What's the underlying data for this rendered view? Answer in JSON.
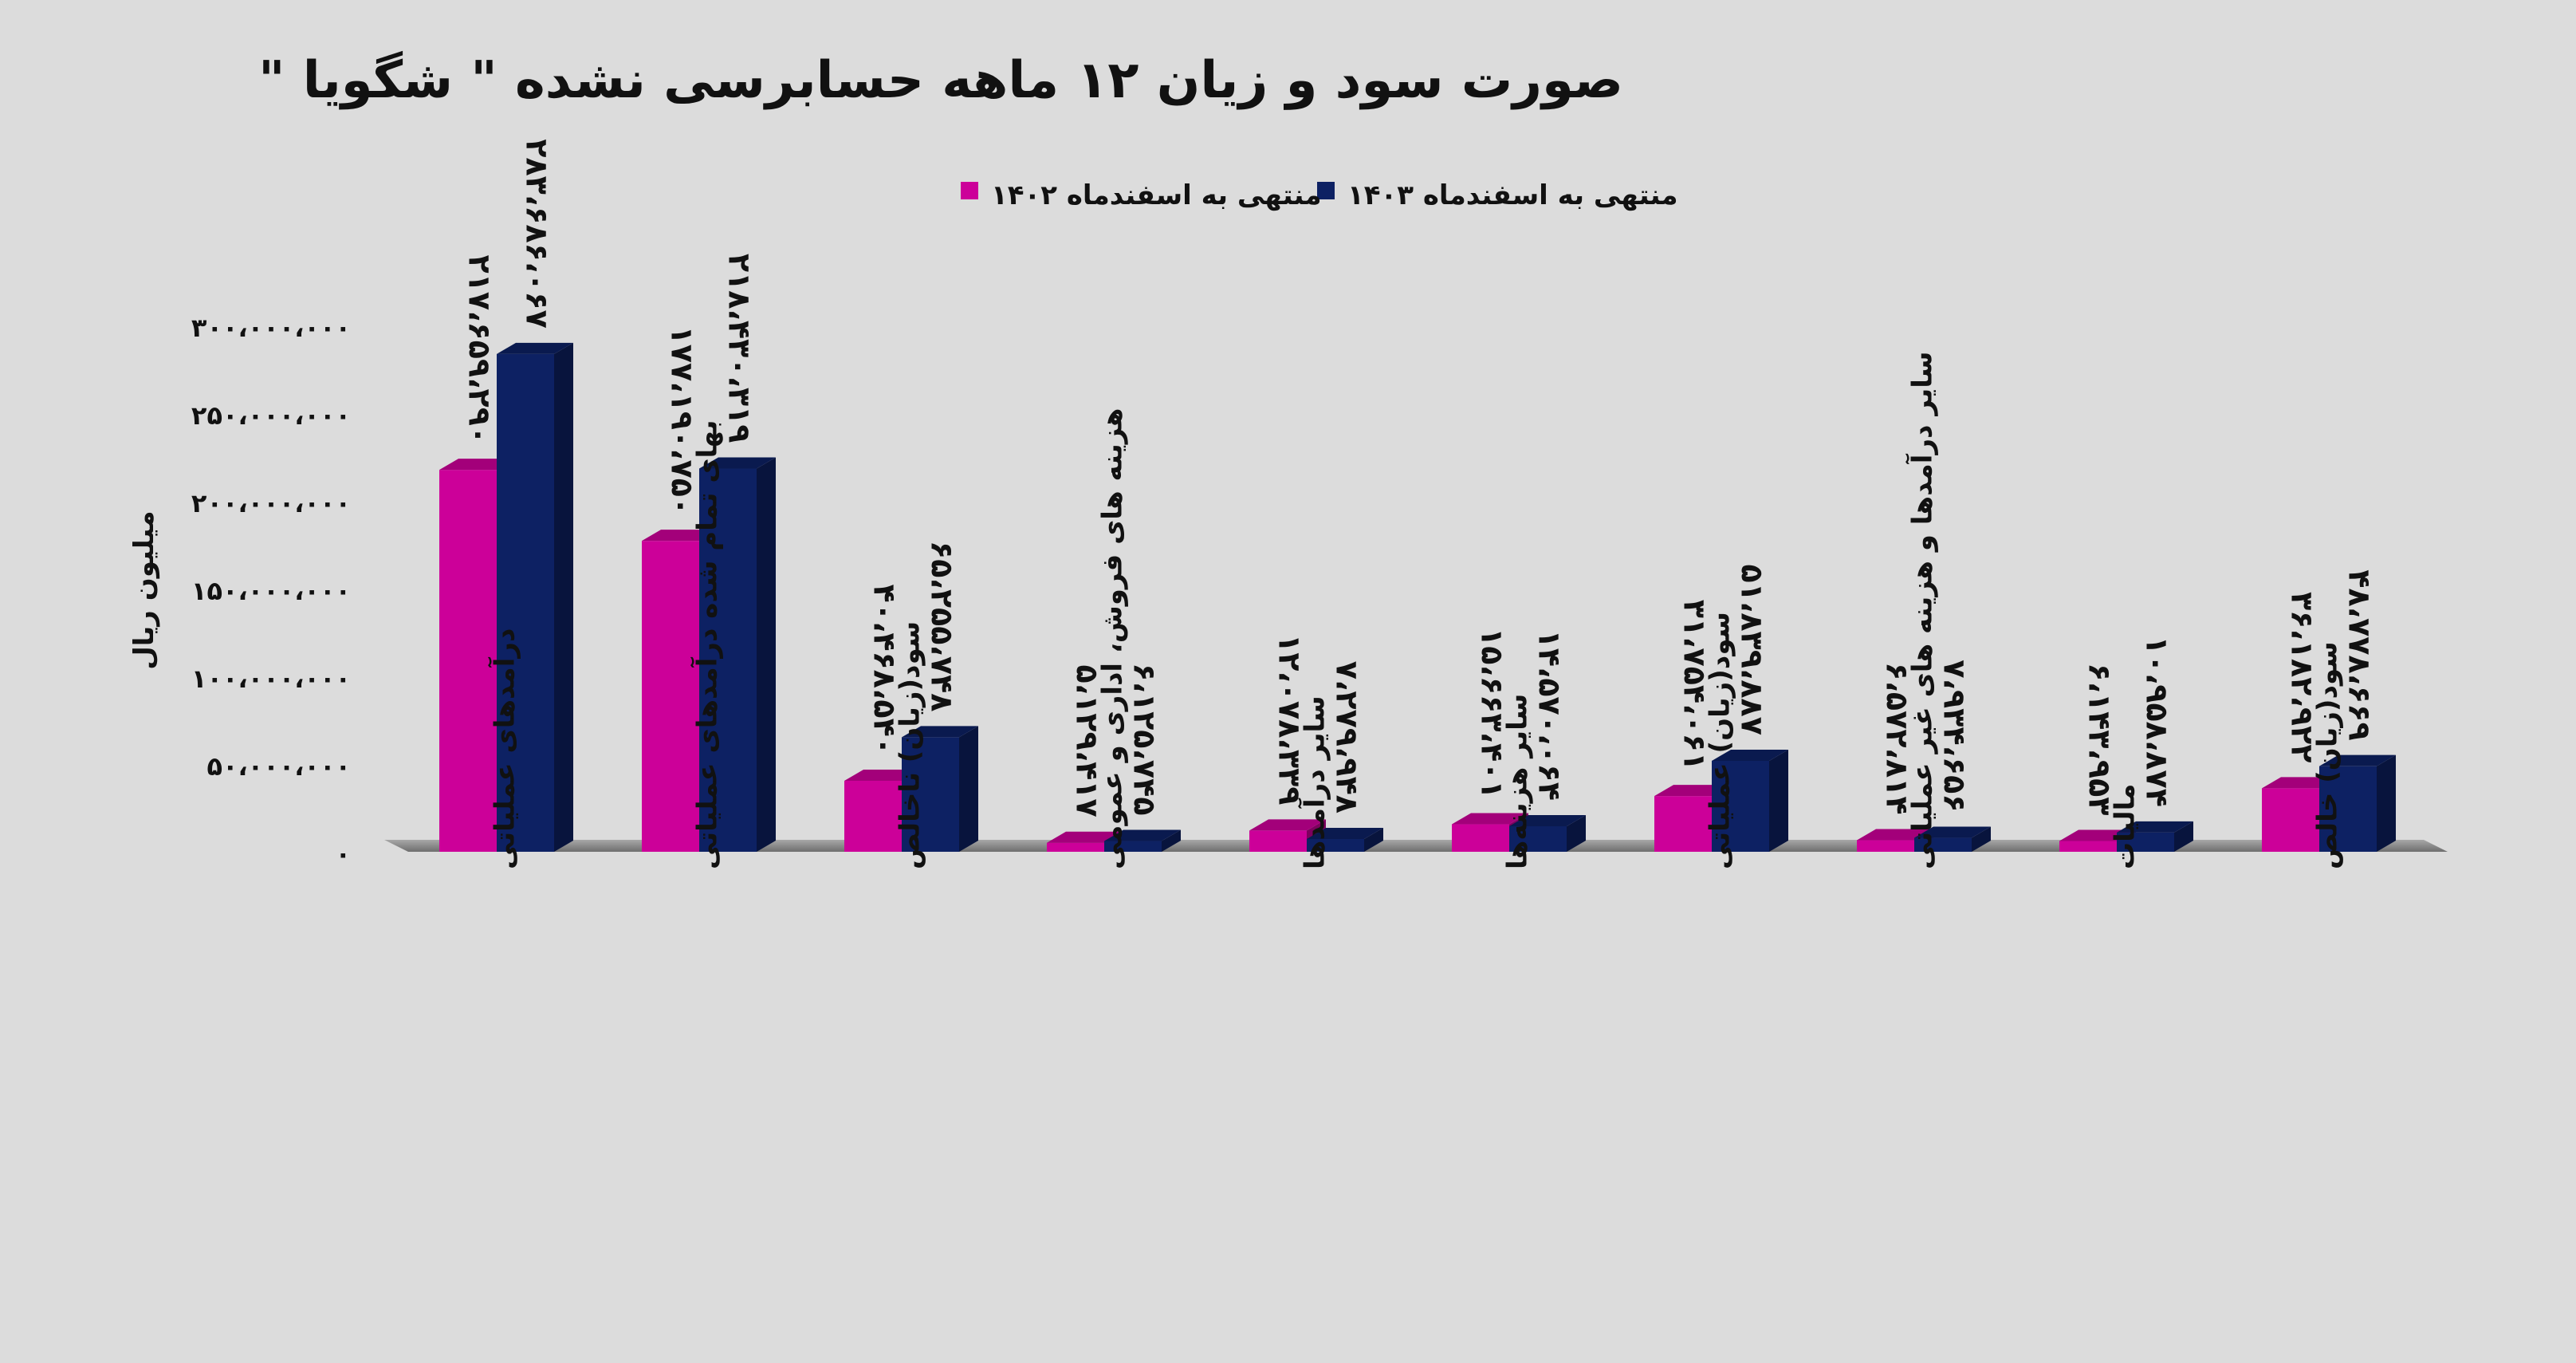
{
  "chart_data": {
    "type": "bar",
    "title": "صورت سود و زیان ۱۲ ماهه حسابرسی نشده \" شگویا \"",
    "ylabel": "میلیون ریال",
    "ylim": [
      0,
      300000000
    ],
    "yticks": [
      {
        "value": 0,
        "label": "۰"
      },
      {
        "value": 50000000,
        "label": "۵۰،۰۰۰،۰۰۰"
      },
      {
        "value": 100000000,
        "label": "۱۰۰،۰۰۰،۰۰۰"
      },
      {
        "value": 150000000,
        "label": "۱۵۰،۰۰۰،۰۰۰"
      },
      {
        "value": 200000000,
        "label": "۲۰۰،۰۰۰،۰۰۰"
      },
      {
        "value": 250000000,
        "label": "۲۵۰،۰۰۰،۰۰۰"
      },
      {
        "value": 300000000,
        "label": "۳۰۰،۰۰۰،۰۰۰"
      }
    ],
    "legend_position": "top-center",
    "grid": false,
    "categories": [
      "درآمدهای عملیاتی",
      "بهای تمام شده درآمدهای عملیاتی",
      "سود(زیان) ناخالص",
      "هزینه های فروش، اداری و عمومی",
      "سایر درآمدها",
      "سایر هزینه‌ها",
      "سود(زیان) عملیاتی",
      "سایر درآمدها و هزینه های غیر عملیاتی",
      "مالیات",
      "سود(زیان) خالص"
    ],
    "series": [
      {
        "name": "منتهی به اسفندماه ۱۴۰۲",
        "color": "#cc0099",
        "values": [
          217659290,
          177190750,
          40468540,
          5129417,
          12078339,
          15663401,
          31754061,
          6572814,
          6143953,
          36182922
        ],
        "labels": [
          "۲۱۷،۶۵۹،۲۹۰",
          "۱۷۷،۱۹۰،۷۵۰",
          "۴۰،۴۶۸،۵۴۰",
          "۵،۱۲۹،۴۱۷",
          "۱۲،۰۷۸،۳۳۹",
          "۱۵،۶۶۳،۴۰۱",
          "۳۱،۷۵۴،۰۶۱",
          "۶،۵۷۲،۸۱۴",
          "۶،۱۴۳،۹۵۳",
          "۳۶،۱۸۲،۹۲۲"
        ]
      },
      {
        "name": "منتهی به اسفندماه ۱۴۰۳",
        "color": "#0d2163",
        "values": [
          283686067,
          218430319,
          65255748,
          6125745,
          7279948,
          14570064,
          51839887,
          7934656,
          10958874,
          48778669
        ],
        "labels": [
          "۲۸۳،۶۸۶،۰۶۷",
          "۲۱۸،۴۳۰،۳۱۹",
          "۶۵،۲۵۵،۷۴۸",
          "۶،۱۲۵،۷۴۵",
          "۷،۲۷۹،۹۴۸",
          "۱۴،۵۷۰،۰۶۴",
          "۵۱،۸۳۹،۸۸۷",
          "۷،۹۳۴،۶۵۶",
          "۱۰،۹۵۸،۸۷۴",
          "۴۸،۷۷۸،۶۶۹"
        ]
      }
    ]
  }
}
